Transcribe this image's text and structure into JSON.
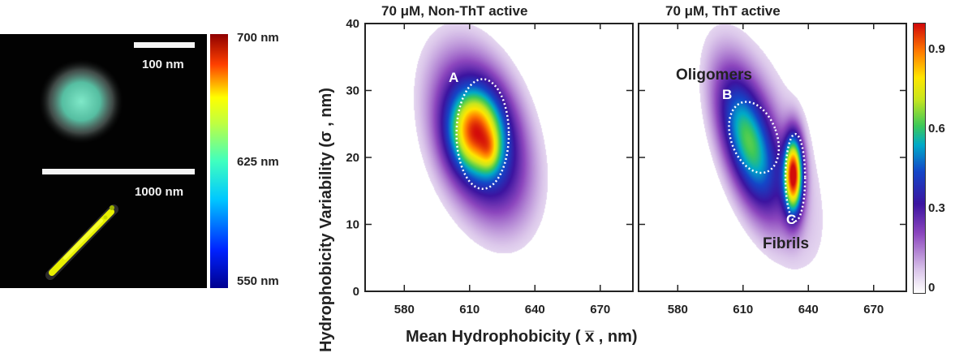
{
  "left_panel": {
    "scale_bar_top": "100 nm",
    "scale_bar_bottom": "1000 nm",
    "colorbar_ticks": [
      "700 nm",
      "625 nm",
      "550 nm"
    ]
  },
  "right_colorbar_ticks": [
    "0.9",
    "0.6",
    "0.3",
    "0"
  ],
  "shared_labels": {
    "xlabel": "Mean Hydrophobicity ( x̅ , nm)",
    "ylabel": "Hydrophobicity Variability (σ , nm)"
  },
  "chart_data": [
    {
      "type": "heatmap",
      "title": "70 μM, Non-ThT active",
      "xlabel": "Mean Hydrophobicity ( x̅ , nm)",
      "ylabel": "Hydrophobicity Variability (σ , nm)",
      "xlim": [
        562,
        685
      ],
      "ylim": [
        0,
        40
      ],
      "xticks": [
        580,
        610,
        640,
        670
      ],
      "yticks": [
        0,
        10,
        20,
        30,
        40
      ],
      "zlim": [
        0,
        1
      ],
      "blobs": [
        {
          "x": 615,
          "y": 23,
          "sx": 15,
          "sy": 7.5,
          "amp": 0.55,
          "rot": -15
        },
        {
          "x": 612,
          "y": 24,
          "sx": 8,
          "sy": 4,
          "amp": 0.45,
          "rot": 0
        },
        {
          "x": 619,
          "y": 21,
          "sx": 3,
          "sy": 2,
          "amp": 0.15,
          "rot": 0
        }
      ],
      "regions": [
        {
          "label": "A",
          "cx": 616,
          "cy": 23.5,
          "rx": 12,
          "ry": 8.2
        }
      ],
      "annotations": []
    },
    {
      "type": "heatmap",
      "title": "70 μM, ThT active",
      "xlabel": "Mean Hydrophobicity ( x̅ , nm)",
      "ylabel": "",
      "xlim": [
        562,
        685
      ],
      "ylim": [
        0,
        40
      ],
      "xticks": [
        580,
        610,
        640,
        670
      ],
      "yticks": [],
      "zlim": [
        0,
        1
      ],
      "blobs": [
        {
          "x": 612,
          "y": 22.5,
          "sx": 11,
          "sy": 5.5,
          "amp": 0.55,
          "rot": -30
        },
        {
          "x": 633,
          "y": 17.5,
          "sx": 3,
          "sy": 4,
          "amp": 0.9,
          "rot": 0
        },
        {
          "x": 625,
          "y": 20,
          "sx": 20,
          "sy": 9,
          "amp": 0.12,
          "rot": -30
        }
      ],
      "regions": [
        {
          "label": "B",
          "cx": 615,
          "cy": 23,
          "rx": 10.5,
          "ry": 5.5,
          "rot": -20
        },
        {
          "label": "C",
          "cx": 634,
          "cy": 17,
          "rx": 4.5,
          "ry": 6.5,
          "rot": 0
        }
      ],
      "annotations": [
        "Oligomers",
        "Fibrils"
      ]
    }
  ]
}
